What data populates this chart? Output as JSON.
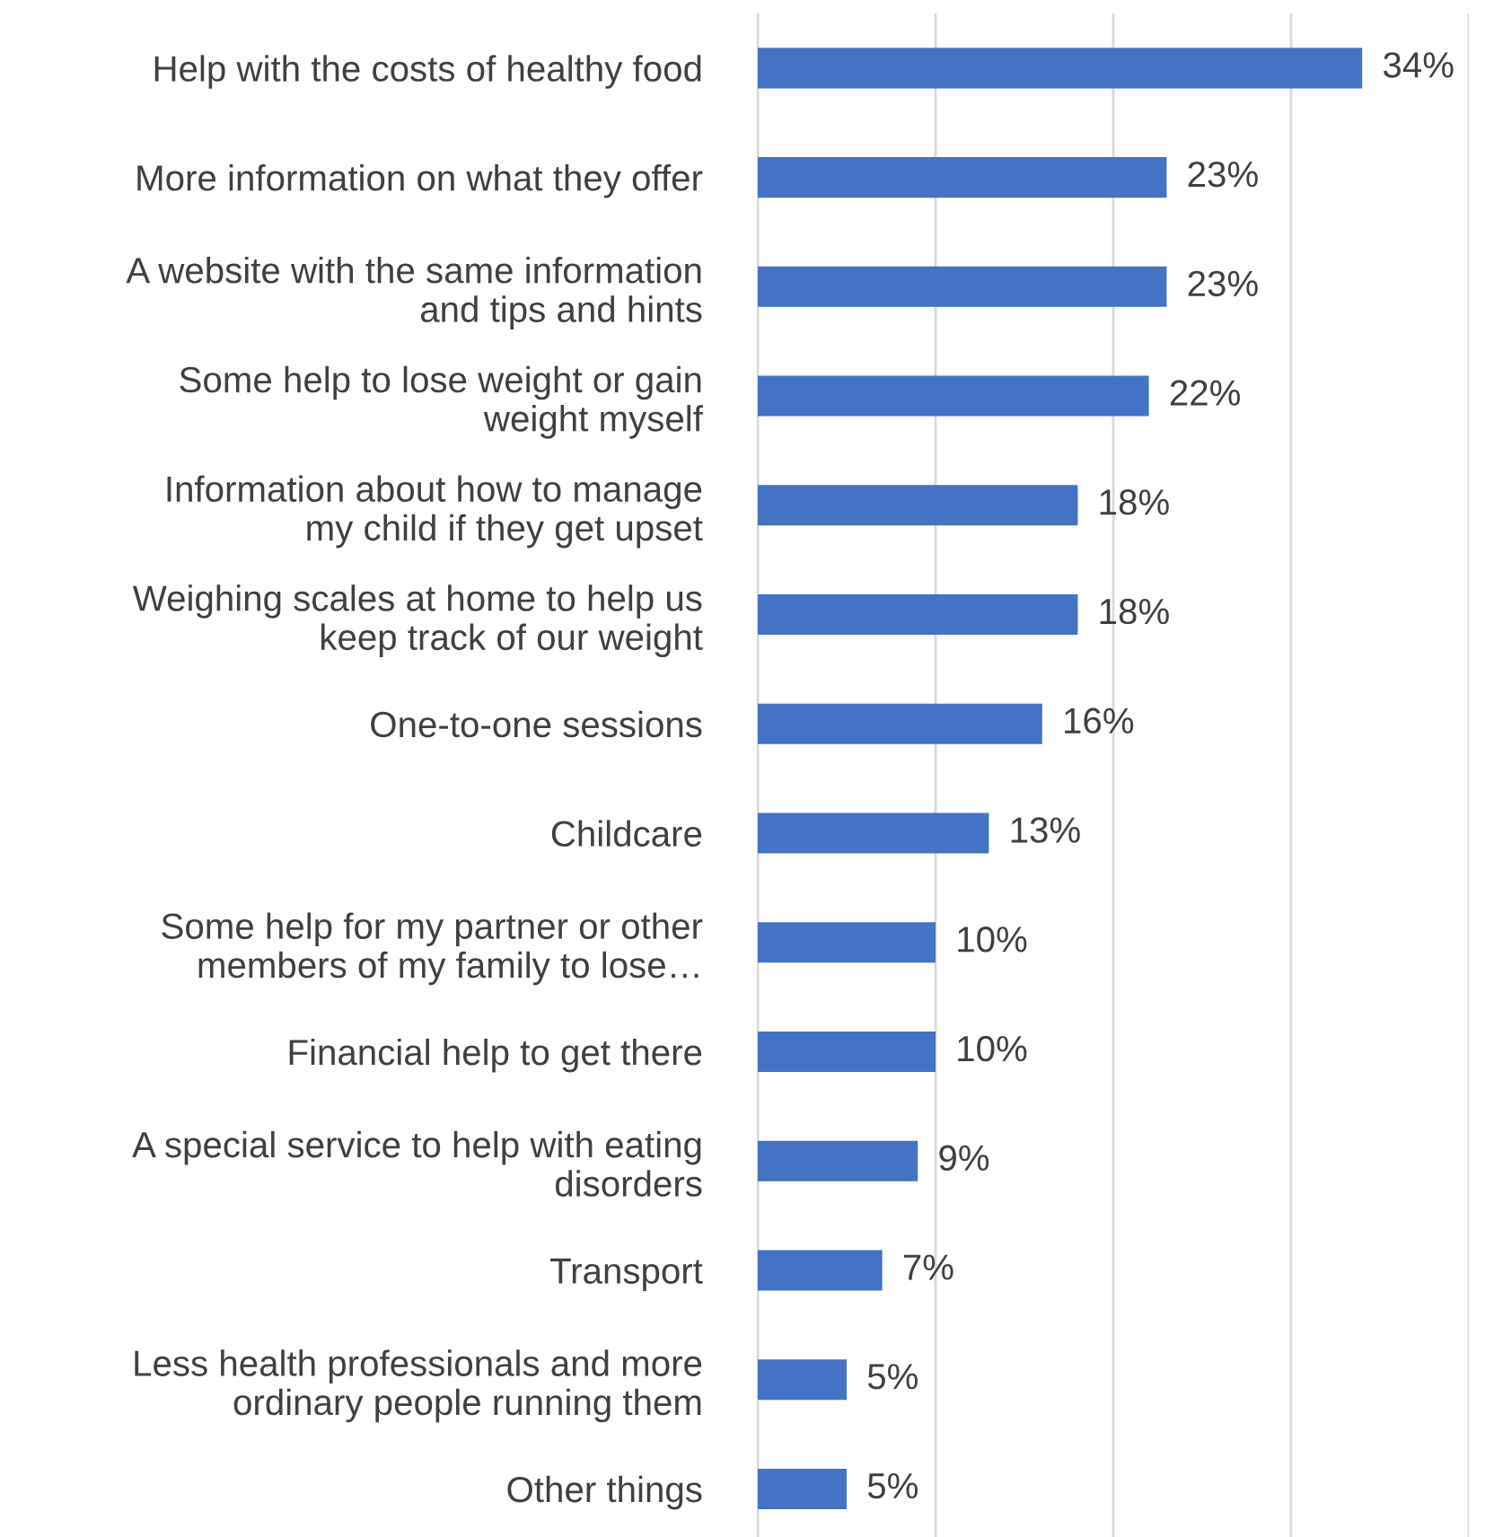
{
  "chart_data": {
    "type": "bar",
    "orientation": "horizontal",
    "categories": [
      "Help with the costs of healthy food",
      "More information on what they offer",
      "A website with the same information\nand tips and hints",
      "Some help to lose weight or gain\nweight myself",
      "Information about how to manage\nmy child if they get upset",
      "Weighing scales at home to help us\nkeep track of our weight",
      "One-to-one sessions",
      "Childcare",
      "Some help for my partner or other\nmembers of my family to lose…",
      "Financial help to get there",
      "A special service to help with eating\ndisorders",
      "Transport",
      "Less health professionals and more\nordinary people running them",
      "Other things"
    ],
    "values": [
      34,
      23,
      23,
      22,
      18,
      18,
      16,
      13,
      10,
      10,
      9,
      7,
      5,
      5
    ],
    "value_labels": [
      "34%",
      "23%",
      "23%",
      "22%",
      "18%",
      "18%",
      "16%",
      "13%",
      "10%",
      "10%",
      "9%",
      "7%",
      "5%",
      "5%"
    ],
    "color": "#4472c4",
    "xlim": [
      0,
      40
    ],
    "xticks": [
      {
        "value": 0,
        "label": null
      },
      {
        "value": 10,
        "label": null
      },
      {
        "value": 20,
        "label": null
      },
      {
        "value": 30,
        "label": null
      },
      {
        "value": 40,
        "label": null
      }
    ],
    "grid": "x",
    "tick_labels": "y",
    "legend": false
  }
}
